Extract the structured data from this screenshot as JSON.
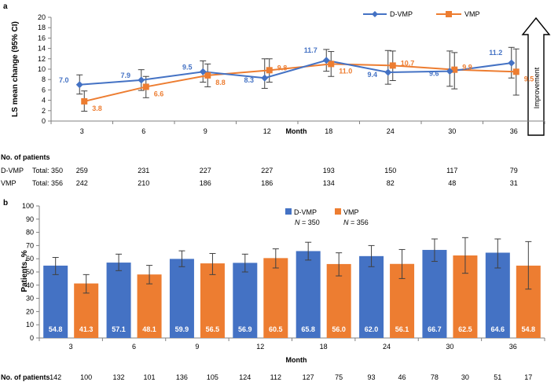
{
  "colors": {
    "dvmp": "#4472C4",
    "vmp": "#ED7D31",
    "error_bar": "#404040",
    "axis": "#808080",
    "text": "#000000"
  },
  "panel_a_tag": "a",
  "panel_b_tag": "b",
  "improvement_label": "Improvement",
  "chart_data": [
    {
      "panel": "a",
      "type": "line",
      "title": "",
      "xlabel": "Month",
      "ylabel": "LS mean change (95% CI)",
      "ylim": [
        0,
        20
      ],
      "yticks": [
        0,
        2,
        4,
        6,
        8,
        10,
        12,
        14,
        16,
        18,
        20
      ],
      "categories": [
        "3",
        "6",
        "9",
        "12",
        "18",
        "24",
        "30",
        "36"
      ],
      "legend": [
        "D-VMP",
        "VMP"
      ],
      "legend_position": "top-right",
      "series": [
        {
          "name": "D-VMP",
          "values": [
            7.0,
            7.9,
            9.5,
            8.3,
            11.7,
            9.4,
            9.6,
            11.2
          ],
          "labels": [
            "7.0",
            "7.9",
            "9.5",
            "8.3",
            "11.7",
            "9.4",
            "9.6",
            "11.2"
          ],
          "ci_low": [
            5.2,
            5.9,
            7.5,
            6.3,
            9.6,
            7.1,
            6.7,
            8.3
          ],
          "ci_high": [
            8.9,
            9.9,
            11.6,
            12.0,
            13.8,
            13.6,
            13.5,
            14.2
          ]
        },
        {
          "name": "VMP",
          "values": [
            3.8,
            6.6,
            8.8,
            9.8,
            11.0,
            10.7,
            9.9,
            9.5
          ],
          "labels": [
            "3.8",
            "6.6",
            "8.8",
            "9.8",
            "11.0",
            "10.7",
            "9.9",
            "9.5"
          ],
          "ci_low": [
            1.9,
            4.5,
            6.6,
            7.5,
            8.6,
            7.8,
            6.2,
            5.0
          ],
          "ci_high": [
            5.8,
            8.6,
            11.0,
            12.0,
            13.4,
            13.5,
            13.2,
            13.9
          ]
        }
      ],
      "patients": {
        "header": "No. of patients",
        "rows": [
          {
            "arm": "D-VMP",
            "total": "Total: 350",
            "counts": [
              "259",
              "231",
              "227",
              "227",
              "193",
              "150",
              "117",
              "79"
            ]
          },
          {
            "arm": "VMP",
            "total": "Total: 356",
            "counts": [
              "242",
              "210",
              "186",
              "186",
              "134",
              "82",
              "48",
              "31"
            ]
          }
        ]
      }
    },
    {
      "panel": "b",
      "type": "bar",
      "title": "",
      "xlabel": "Month",
      "ylabel": "Patients, %",
      "ylim": [
        0,
        100
      ],
      "yticks": [
        0,
        10,
        20,
        30,
        40,
        50,
        60,
        70,
        80,
        90,
        100
      ],
      "categories": [
        "3",
        "6",
        "9",
        "12",
        "18",
        "24",
        "30",
        "36"
      ],
      "legend": [
        {
          "name": "D-VMP",
          "n_prefix": "N",
          "n_value": " = 350"
        },
        {
          "name": "VMP",
          "n_prefix": "N",
          "n_value": " = 356"
        }
      ],
      "legend_position": "top-center",
      "series": [
        {
          "name": "D-VMP",
          "values": [
            54.8,
            57.1,
            59.9,
            56.9,
            65.8,
            62.0,
            66.7,
            64.6
          ],
          "labels": [
            "54.8",
            "57.1",
            "59.9",
            "56.9",
            "65.8",
            "62.0",
            "66.7",
            "64.6"
          ],
          "err_low": [
            48.0,
            51.0,
            54.0,
            50.0,
            59.0,
            54.0,
            58.0,
            53.0
          ],
          "err_high": [
            61.0,
            63.5,
            66.0,
            63.5,
            72.5,
            70.0,
            75.0,
            75.0
          ]
        },
        {
          "name": "VMP",
          "values": [
            41.3,
            48.1,
            56.5,
            60.5,
            56.0,
            56.1,
            62.5,
            54.8
          ],
          "labels": [
            "41.3",
            "48.1",
            "56.5",
            "60.5",
            "56.0",
            "56.1",
            "62.5",
            "54.8"
          ],
          "err_low": [
            34.0,
            41.0,
            48.0,
            53.0,
            47.0,
            45.0,
            49.0,
            37.0
          ],
          "err_high": [
            48.0,
            55.0,
            64.0,
            67.5,
            64.5,
            67.0,
            76.0,
            73.0
          ]
        }
      ],
      "patients": {
        "header": "No. of patients",
        "dvmp": [
          "142",
          "132",
          "136",
          "124",
          "127",
          "93",
          "78",
          "51"
        ],
        "vmp": [
          "100",
          "101",
          "105",
          "112",
          "75",
          "46",
          "30",
          "17"
        ]
      }
    }
  ]
}
